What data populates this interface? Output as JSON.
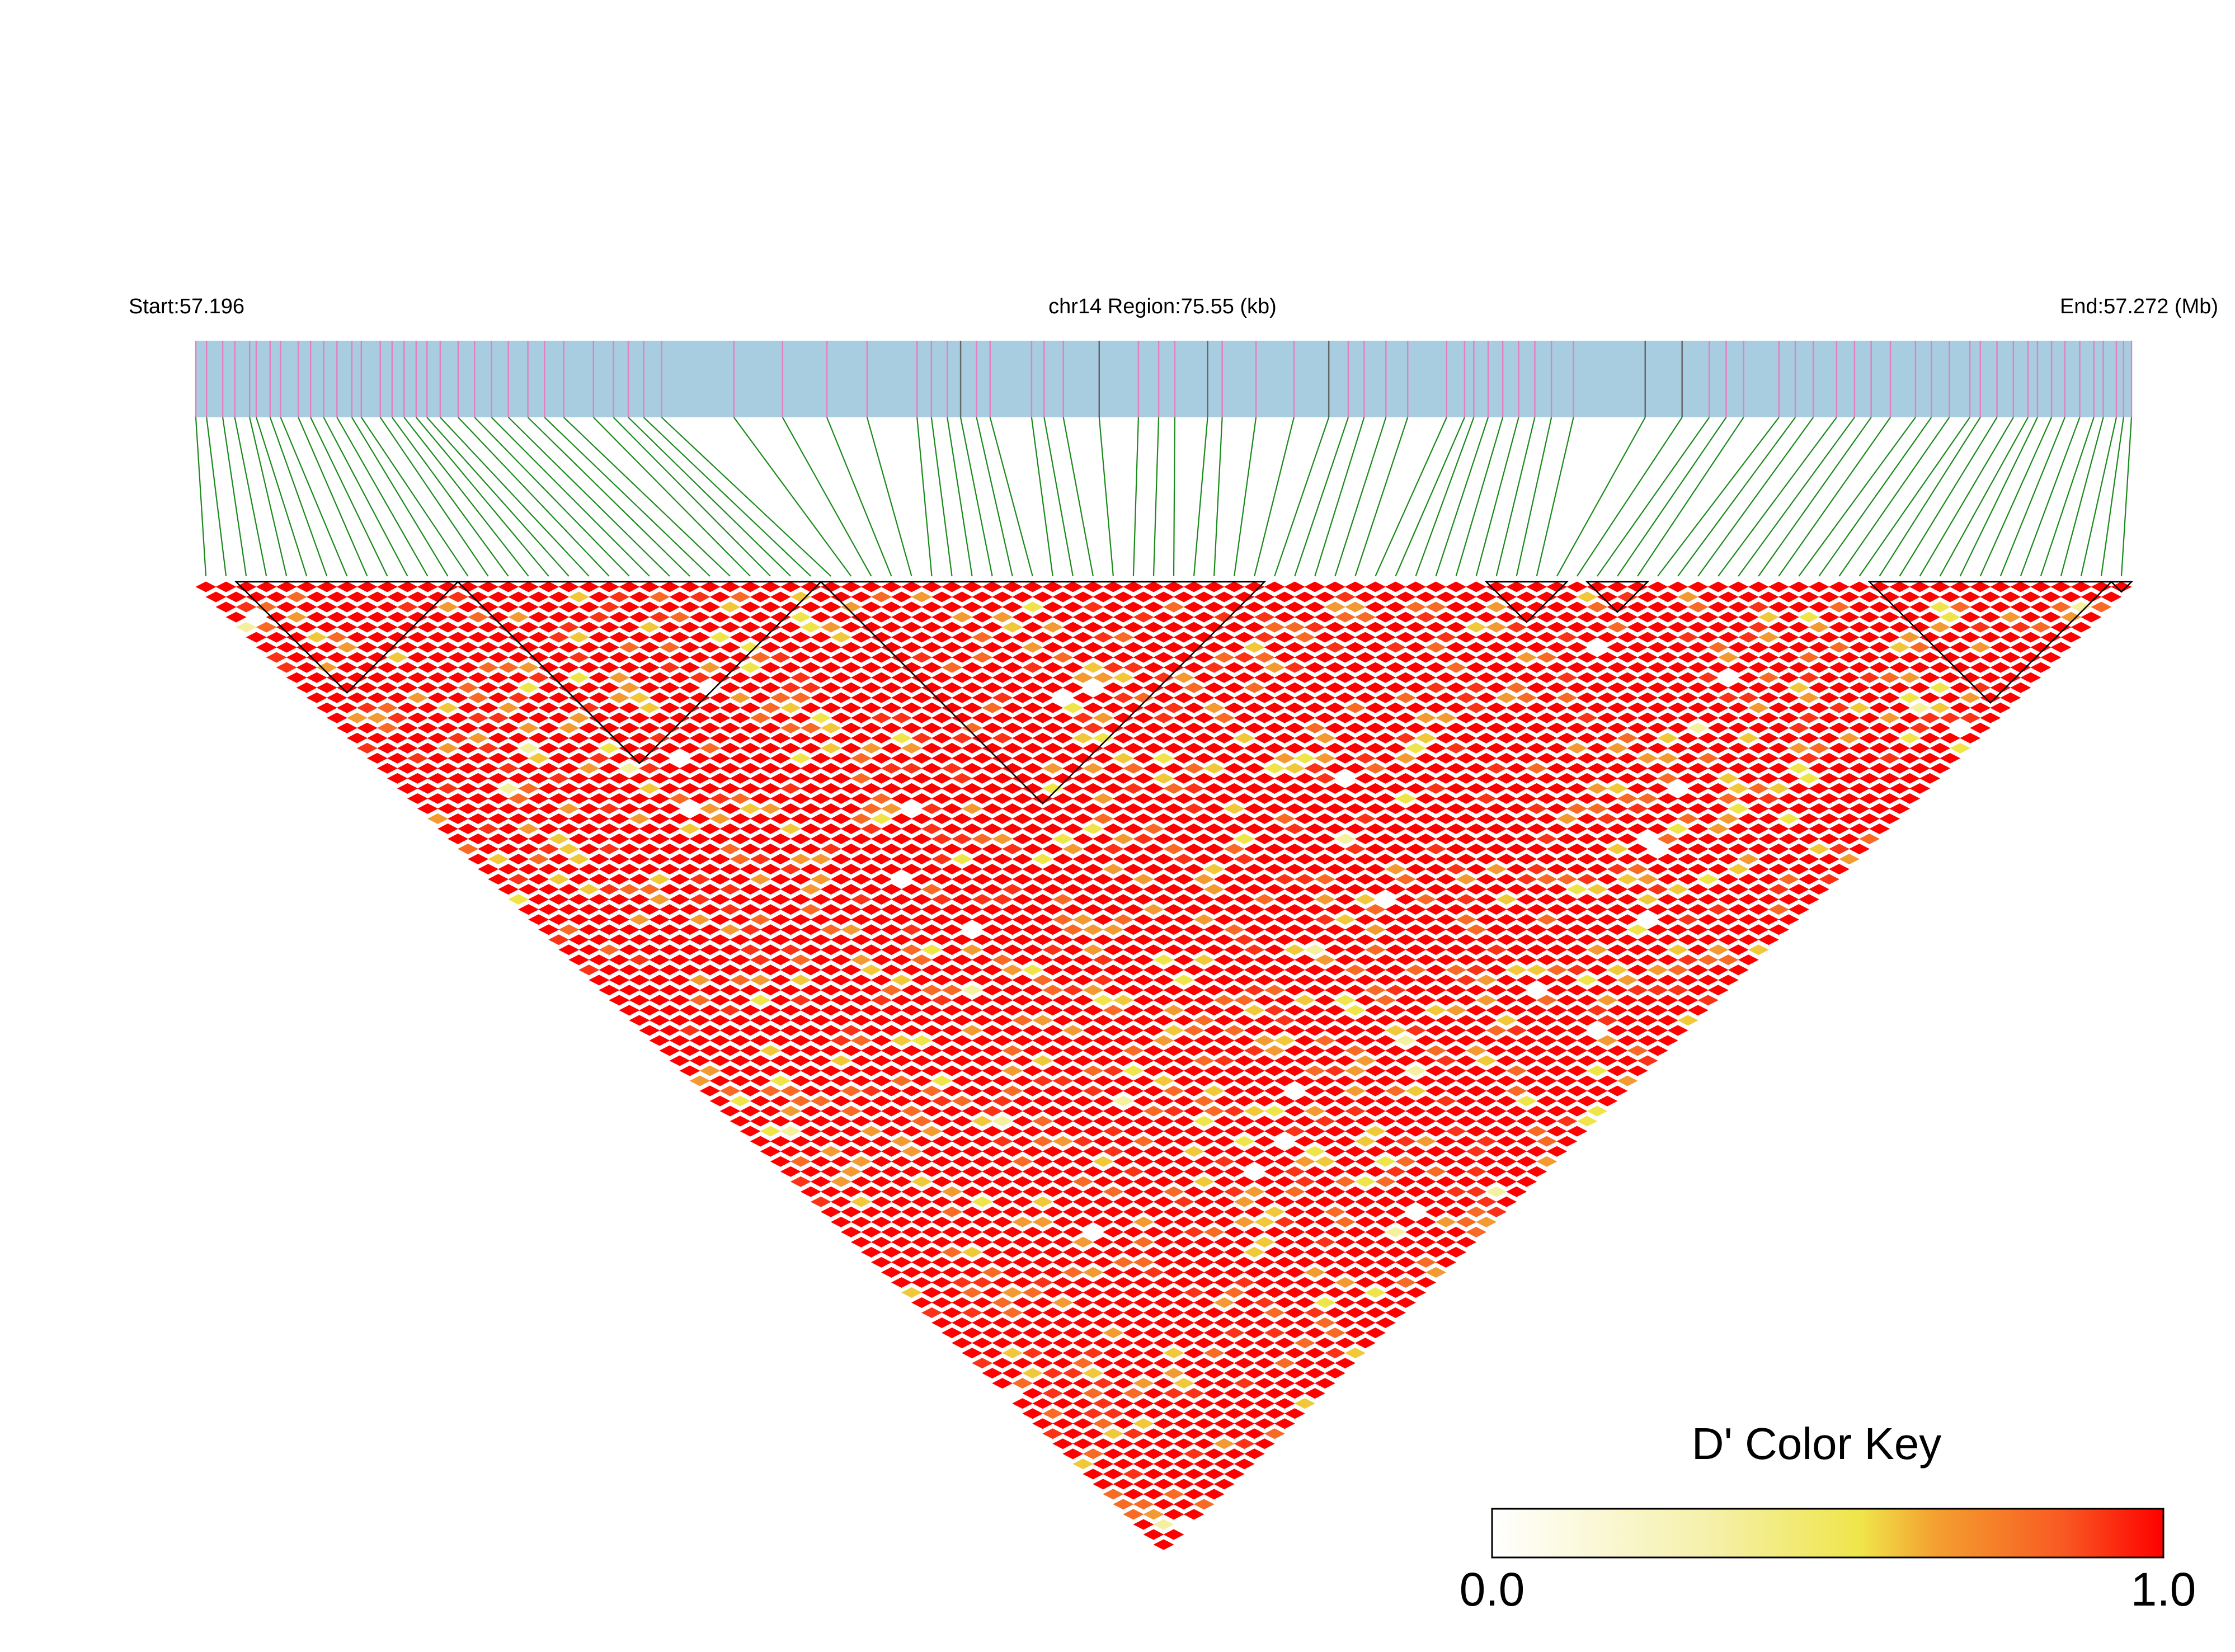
{
  "chart_data": {
    "type": "heatmap",
    "title": "",
    "start_label": "Start:57.196",
    "region_label": "chr14 Region:75.55 (kb)",
    "end_label": "End:57.272 (Mb)",
    "chromosome": "chr14",
    "region_start_mb": 57.196,
    "region_end_mb": 57.272,
    "region_length_kb": 75.55,
    "snp_count": 96,
    "snp_positions_kb": [
      0.0,
      0.42,
      1.05,
      1.52,
      2.1,
      2.36,
      2.9,
      3.31,
      4.0,
      4.48,
      4.99,
      5.51,
      6.09,
      6.46,
      7.2,
      7.66,
      8.13,
      8.6,
      9.02,
      9.54,
      10.24,
      10.88,
      11.54,
      12.2,
      12.96,
      13.61,
      14.36,
      15.52,
      16.3,
      16.88,
      17.48,
      18.18,
      21.0,
      22.9,
      24.63,
      26.2,
      28.15,
      28.71,
      29.33,
      29.85,
      30.47,
      31.0,
      32.62,
      33.11,
      33.86,
      35.26,
      36.79,
      37.58,
      38.21,
      39.49,
      40.06,
      41.38,
      42.86,
      44.22,
      44.98,
      45.6,
      46.45,
      47.3,
      48.82,
      49.52,
      49.88,
      50.44,
      51.01,
      51.63,
      52.26,
      52.91,
      53.77,
      56.57,
      58.01,
      59.07,
      59.73,
      60.41,
      61.79,
      62.43,
      63.13,
      64.04,
      64.74,
      65.39,
      66.14,
      67.12,
      67.74,
      68.44,
      69.24,
      69.65,
      70.3,
      70.94,
      71.51,
      71.88,
      72.43,
      72.95,
      73.53,
      74.08,
      74.45,
      74.96,
      75.24,
      75.55
    ],
    "dprime_matrix_summary": "pairwise D' values, predominantly near 1.0 (red) with scattered lower values (orange/yellow/white)",
    "ld_blocks_snp_index": [
      [
        0,
        1
      ],
      [
        2,
        10
      ],
      [
        11,
        32
      ],
      [
        33,
        34
      ],
      [
        35,
        36
      ],
      [
        37,
        38
      ],
      [
        39,
        40
      ],
      [
        41,
        42
      ],
      [
        43,
        44
      ],
      [
        45,
        46
      ],
      [
        47,
        48
      ],
      [
        49,
        50
      ],
      [
        51,
        52
      ],
      [
        53,
        54
      ],
      [
        55,
        56
      ],
      [
        57,
        58
      ],
      [
        59,
        60
      ],
      [
        61,
        62
      ],
      [
        63,
        64
      ],
      [
        65,
        66
      ],
      [
        67,
        68
      ],
      [
        69,
        70
      ],
      [
        71,
        72
      ],
      [
        73,
        74
      ],
      [
        75,
        76
      ],
      [
        77,
        78
      ],
      [
        79,
        80
      ],
      [
        81,
        82
      ],
      [
        83,
        84
      ],
      [
        85,
        86
      ],
      [
        87,
        88
      ],
      [
        89,
        90
      ],
      [
        91,
        92
      ],
      [
        93,
        94
      ],
      [
        95,
        95
      ]
    ],
    "ld_blocks_outlined": [
      [
        2,
        12
      ],
      [
        13,
        30
      ],
      [
        31,
        52
      ],
      [
        64,
        67
      ],
      [
        69,
        71
      ],
      [
        83,
        94
      ],
      [
        95,
        95
      ]
    ],
    "legend": {
      "title": "D' Color Key",
      "min_label": "0.0",
      "max_label": "1.0",
      "colors": [
        "#ffffff",
        "#f0e640",
        "#f4a030",
        "#ff0000"
      ]
    },
    "colors": {
      "gene_track": "#a8cde1",
      "snp_tick": "#e580c0",
      "snp_tick_dark": "#666666",
      "connector": "#1a8a1a",
      "block_outline": "#000000"
    }
  }
}
